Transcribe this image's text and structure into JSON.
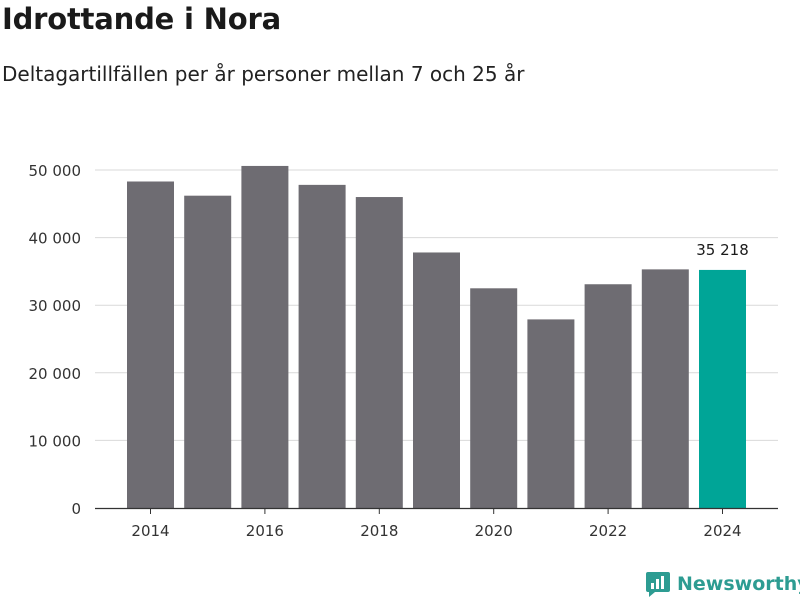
{
  "header": {
    "title": "Idrottande i Nora",
    "subtitle": "Deltagartillfällen per år personer mellan 7 och 25 år"
  },
  "brand": {
    "name": "Newsworthy",
    "icon": "newsworthy-logo-icon"
  },
  "colors": {
    "bar": "#6e6c72",
    "highlight": "#00a597",
    "grid": "#d9d9d9",
    "axis": "#333333",
    "brand": "#2d9c92"
  },
  "chart_data": {
    "type": "bar",
    "title": "Idrottande i Nora",
    "subtitle": "Deltagartillfällen per år personer mellan 7 och 25 år",
    "categories": [
      "2014",
      "2015",
      "2016",
      "2017",
      "2018",
      "2019",
      "2020",
      "2021",
      "2022",
      "2023",
      "2024"
    ],
    "values": [
      48300,
      46200,
      50600,
      47800,
      46000,
      37800,
      32500,
      27900,
      33100,
      35300,
      35218
    ],
    "highlight_index": 10,
    "data_labels": [
      {
        "index": 10,
        "text": "35 218"
      }
    ],
    "xticks": [
      "2014",
      "2016",
      "2018",
      "2020",
      "2022",
      "2024"
    ],
    "yticks": [
      {
        "value": 0,
        "label": "0"
      },
      {
        "value": 10000,
        "label": "10 000"
      },
      {
        "value": 20000,
        "label": "20 000"
      },
      {
        "value": 30000,
        "label": "30 000"
      },
      {
        "value": 40000,
        "label": "40 000"
      },
      {
        "value": 50000,
        "label": "50 000"
      }
    ],
    "ylim": [
      0,
      50000
    ],
    "grid": true,
    "xlabel": "",
    "ylabel": ""
  }
}
